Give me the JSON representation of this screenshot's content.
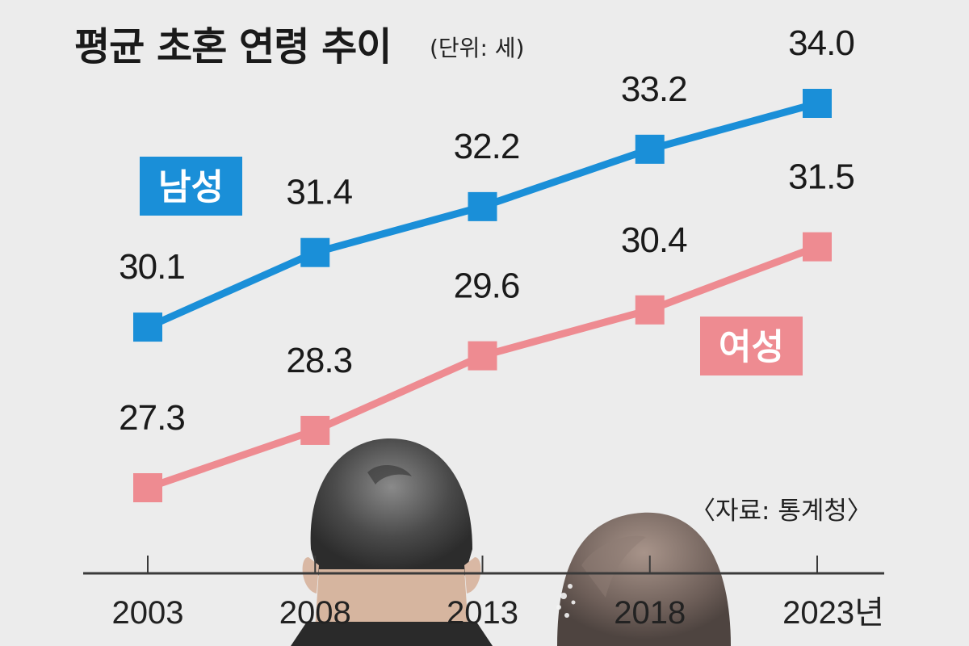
{
  "header": {
    "title": "평균 초혼 연령 추이",
    "unit": "(단위: 세)"
  },
  "footer": {
    "source": "〈자료: 통계청〉"
  },
  "chart_data": {
    "type": "line",
    "title": "평균 초혼 연령 추이",
    "unit": "세",
    "categories": [
      "2003",
      "2008",
      "2013",
      "2018",
      "2023"
    ],
    "category_labels": [
      "2003",
      "2008",
      "2013",
      "2018",
      "2023년"
    ],
    "series": [
      {
        "name": "남성",
        "values": [
          30.1,
          31.4,
          32.2,
          33.2,
          34.0
        ],
        "labels": [
          "30.1",
          "31.4",
          "32.2",
          "33.2",
          "34.0"
        ],
        "color": "#1a8fd8"
      },
      {
        "name": "여성",
        "values": [
          27.3,
          28.3,
          29.6,
          30.4,
          31.5
        ],
        "labels": [
          "27.3",
          "28.3",
          "29.6",
          "30.4",
          "31.5"
        ],
        "color": "#ee8b91"
      }
    ],
    "grid": false,
    "legend": "inline"
  }
}
